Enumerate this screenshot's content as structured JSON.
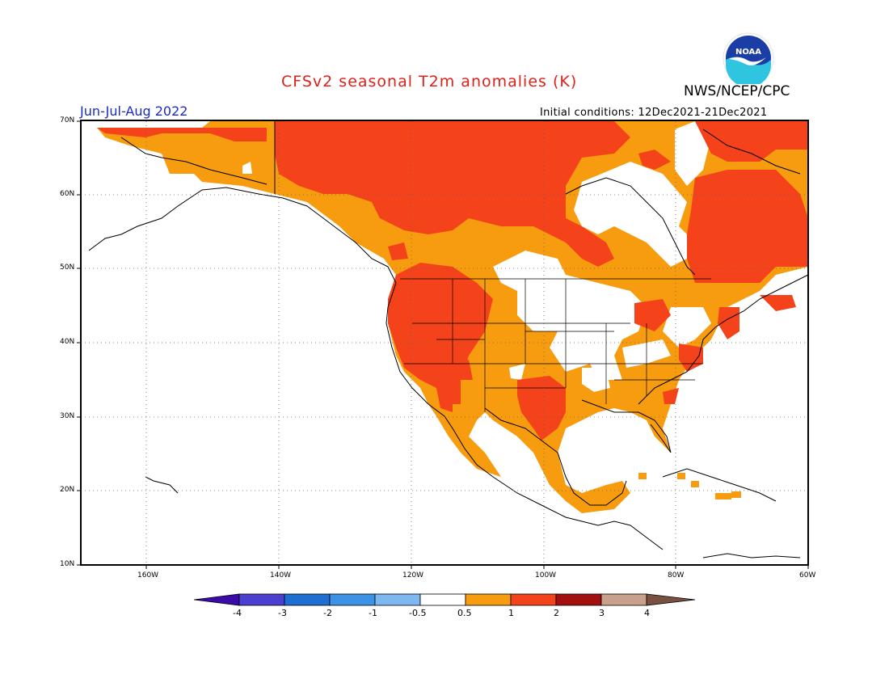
{
  "title": "CFSv2 seasonal T2m anomalies (K)",
  "agency": "NWS/NCEP/CPC",
  "logo_text": "NOAA",
  "season": "Jun-Jul-Aug 2022",
  "initial_conditions": "Initial conditions: 12Dec2021-21Dec2021",
  "lat_labels": [
    "70N",
    "60N",
    "50N",
    "40N",
    "30N",
    "20N",
    "10N"
  ],
  "lon_labels": [
    "160W",
    "140W",
    "120W",
    "100W",
    "80W",
    "60W"
  ],
  "colorbar": {
    "labels": [
      "-4",
      "-3",
      "-2",
      "-1",
      "-0.5",
      "0.5",
      "1",
      "2",
      "3",
      "4"
    ],
    "colors": [
      "#3a0ba8",
      "#4a3fd0",
      "#1f6fd2",
      "#3c93e6",
      "#7fb8f0",
      "#ffffff",
      "#f79b0f",
      "#f4421a",
      "#a30e0e",
      "#c9a08c",
      "#7a5040"
    ]
  },
  "legend_colors": {
    "white": "#ffffff",
    "orange": "#f79b0f",
    "red": "#f4421a"
  }
}
